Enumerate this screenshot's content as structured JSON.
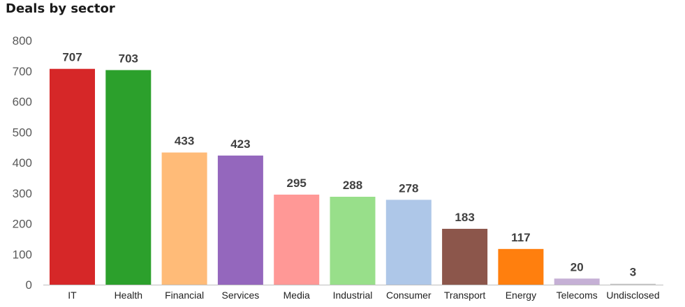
{
  "chart_data": {
    "type": "bar",
    "title": "Deals by sector",
    "categories": [
      "IT",
      "Health",
      "Financial",
      "Services",
      "Media",
      "Industrial",
      "Consumer",
      "Transport",
      "Energy",
      "Telecoms",
      "Undisclosed"
    ],
    "values": [
      707,
      703,
      433,
      423,
      295,
      288,
      278,
      183,
      117,
      20,
      3
    ],
    "colors": [
      "#d62728",
      "#2ca02c",
      "#ffbb78",
      "#9467bd",
      "#ff9896",
      "#98df8a",
      "#aec7e8",
      "#8c564b",
      "#ff7f0e",
      "#c5b0d5",
      "#c7c7c7"
    ],
    "yticks": [
      0,
      100,
      200,
      300,
      400,
      500,
      600,
      700,
      800
    ],
    "ylim": [
      0,
      800
    ],
    "xlabel": "",
    "ylabel": "",
    "grid": false,
    "legend": "none"
  }
}
